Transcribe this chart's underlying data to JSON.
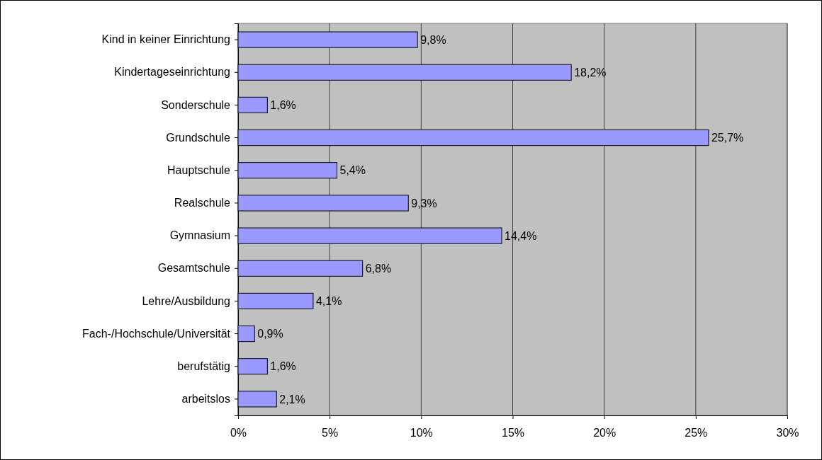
{
  "chart_data": {
    "type": "bar",
    "orientation": "horizontal",
    "categories": [
      "Kind in keiner Einrichtung",
      "Kindertageseinrichtung",
      "Sonderschule",
      "Grundschule",
      "Hauptschule",
      "Realschule",
      "Gymnasium",
      "Gesamtschule",
      "Lehre/Ausbildung",
      "Fach-/Hochschule/Universität",
      "berufstätig",
      "arbeitslos"
    ],
    "values": [
      9.8,
      18.2,
      1.6,
      25.7,
      5.4,
      9.3,
      14.4,
      6.8,
      4.1,
      0.9,
      1.6,
      2.1
    ],
    "value_labels": [
      "9,8%",
      "18,2%",
      "1,6%",
      "25,7%",
      "5,4%",
      "9,3%",
      "14,4%",
      "6,8%",
      "4,1%",
      "0,9%",
      "1,6%",
      "2,1%"
    ],
    "color": "#9999ff",
    "xlim": [
      0,
      30
    ],
    "xticks": [
      {
        "value": 0,
        "label": "0%"
      },
      {
        "value": 5,
        "label": "5%"
      },
      {
        "value": 10,
        "label": "10%"
      },
      {
        "value": 15,
        "label": "15%"
      },
      {
        "value": 20,
        "label": "20%"
      },
      {
        "value": 25,
        "label": "25%"
      },
      {
        "value": 30,
        "label": "30%"
      }
    ],
    "grid": "x"
  }
}
